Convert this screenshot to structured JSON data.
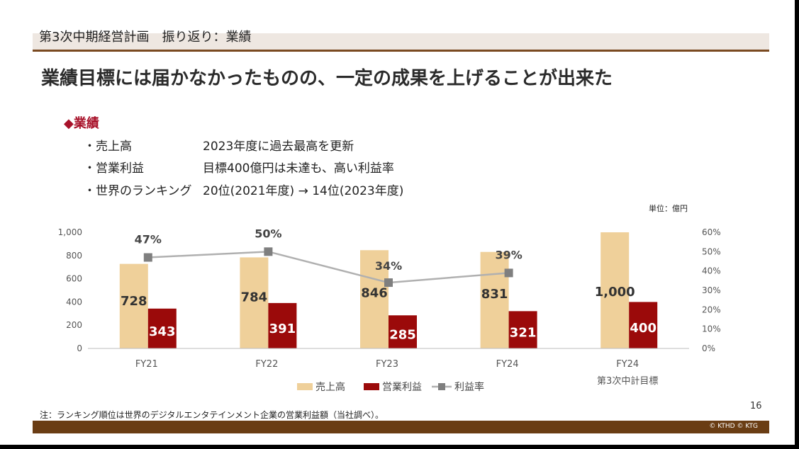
{
  "section_title": "第3次中期経営計画　振り返り：業績",
  "headline": "業績目標には届かなかったものの、一定の成果を上げることが出来た",
  "sub_heading": "◆業績",
  "bullets": [
    {
      "label": "・売上高",
      "text": "2023年度に過去最高を更新"
    },
    {
      "label": "・営業利益",
      "text": "目標400億円は未達も、高い利益率"
    },
    {
      "label": "・世界のランキング",
      "text": "20位(2021年度) → 14位(2023年度)"
    }
  ],
  "unit": "単位：億円",
  "chart_data": {
    "type": "bar",
    "categories": [
      "FY21",
      "FY22",
      "FY23",
      "FY24",
      "FY24"
    ],
    "category_sublabels": [
      "",
      "",
      "",
      "",
      "第3次中計目標"
    ],
    "series": [
      {
        "name": "売上高",
        "values": [
          728,
          784,
          846,
          831,
          1000
        ],
        "labels": [
          "728",
          "784",
          "846",
          "831",
          "1,000"
        ],
        "color": "#efd09a"
      },
      {
        "name": "営業利益",
        "values": [
          343,
          391,
          285,
          321,
          400
        ],
        "labels": [
          "343",
          "391",
          "285",
          "321",
          "400"
        ],
        "color": "#9b0a0a"
      },
      {
        "name": "利益率",
        "type": "line",
        "axis": "right",
        "values": [
          47,
          50,
          34,
          39,
          null
        ],
        "labels": [
          "47%",
          "50%",
          "34%",
          "39%",
          ""
        ],
        "color": "#8c8c8c"
      }
    ],
    "y_left": {
      "min": 0,
      "max": 1000,
      "ticks": [
        "0",
        "200",
        "400",
        "600",
        "800",
        "1,000"
      ]
    },
    "y_right": {
      "min": 0,
      "max": 60,
      "ticks": [
        "0%",
        "10%",
        "20%",
        "30%",
        "40%",
        "50%",
        "60%"
      ]
    },
    "grid": false,
    "legend_position": "bottom"
  },
  "footnote": "注：ランキング順位は世界のデジタルエンタテインメント企業の営業利益額（当社調べ）。",
  "page_number": "16",
  "copyright": "© KTHD © KTG"
}
